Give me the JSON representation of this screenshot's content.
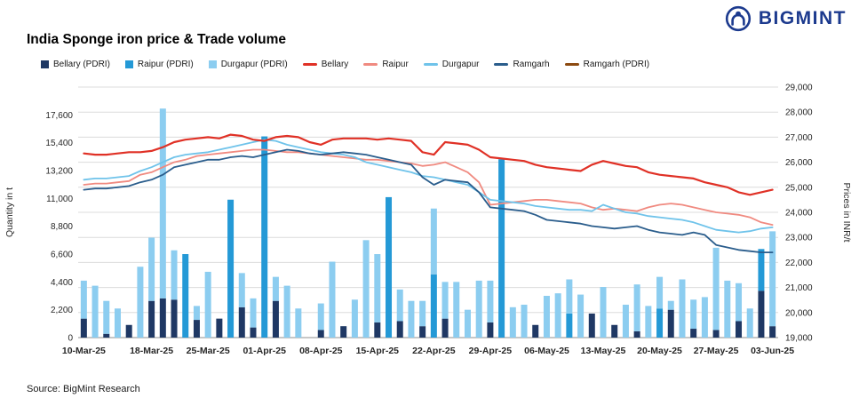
{
  "header": {
    "brand": "BIGMINT"
  },
  "title": "India Sponge iron price & Trade volume",
  "source": "Source: BigMint Research",
  "colors": {
    "brand_navy": "#1c3a8e"
  },
  "chart_data": {
    "type": "bar+line",
    "title": "India Sponge iron price & Trade volume",
    "stacked_bars": true,
    "grid": true,
    "legend_position": "top",
    "x": [
      "10-Mar-25",
      "11-Mar-25",
      "12-Mar-25",
      "13-Mar-25",
      "14-Mar-25",
      "17-Mar-25",
      "18-Mar-25",
      "19-Mar-25",
      "20-Mar-25",
      "21-Mar-25",
      "24-Mar-25",
      "25-Mar-25",
      "26-Mar-25",
      "27-Mar-25",
      "28-Mar-25",
      "31-Mar-25",
      "01-Apr-25",
      "02-Apr-25",
      "03-Apr-25",
      "04-Apr-25",
      "07-Apr-25",
      "08-Apr-25",
      "09-Apr-25",
      "10-Apr-25",
      "11-Apr-25",
      "14-Apr-25",
      "15-Apr-25",
      "16-Apr-25",
      "17-Apr-25",
      "18-Apr-25",
      "21-Apr-25",
      "22-Apr-25",
      "23-Apr-25",
      "24-Apr-25",
      "25-Apr-25",
      "28-Apr-25",
      "29-Apr-25",
      "30-Apr-25",
      "01-May-25",
      "02-May-25",
      "05-May-25",
      "06-May-25",
      "07-May-25",
      "08-May-25",
      "09-May-25",
      "12-May-25",
      "13-May-25",
      "14-May-25",
      "15-May-25",
      "16-May-25",
      "19-May-25",
      "20-May-25",
      "21-May-25",
      "22-May-25",
      "23-May-25",
      "26-May-25",
      "27-May-25",
      "28-May-25",
      "29-May-25",
      "30-May-25",
      "02-Jun-25",
      "03-Jun-25"
    ],
    "x_tick_indices": [
      0,
      6,
      11,
      16,
      21,
      26,
      31,
      36,
      41,
      46,
      51,
      56,
      61
    ],
    "left_axis": {
      "label": "Quantity in t",
      "max": 19800,
      "ticks": [
        0,
        2200,
        4400,
        6600,
        8800,
        11000,
        13200,
        15400,
        17600
      ]
    },
    "right_axis": {
      "label": "Prices in INR/t",
      "min": 19000,
      "max": 29000,
      "step": 1000
    },
    "bar_series": [
      {
        "name": "Bellary (PDRI)",
        "color": "#1f3864",
        "values": [
          1500,
          0,
          300,
          0,
          1000,
          0,
          2900,
          3100,
          3000,
          0,
          1400,
          0,
          1500,
          0,
          2400,
          800,
          0,
          2900,
          0,
          0,
          0,
          600,
          0,
          900,
          0,
          0,
          1200,
          0,
          1300,
          0,
          900,
          0,
          1500,
          0,
          0,
          0,
          1200,
          0,
          0,
          0,
          1000,
          0,
          0,
          0,
          0,
          1900,
          0,
          1000,
          0,
          500,
          0,
          0,
          2200,
          0,
          700,
          0,
          600,
          0,
          1300,
          0,
          3700,
          900
        ]
      },
      {
        "name": "Raipur (PDRI)",
        "color": "#2499d6",
        "values": [
          0,
          0,
          0,
          0,
          0,
          0,
          0,
          0,
          0,
          6600,
          0,
          0,
          0,
          10900,
          0,
          0,
          15900,
          0,
          0,
          0,
          0,
          0,
          0,
          0,
          0,
          0,
          0,
          11100,
          0,
          0,
          0,
          5000,
          0,
          0,
          0,
          0,
          0,
          14100,
          0,
          0,
          0,
          0,
          0,
          1900,
          0,
          0,
          0,
          0,
          0,
          0,
          0,
          2300,
          0,
          0,
          0,
          0,
          0,
          0,
          0,
          0,
          3300,
          0
        ]
      },
      {
        "name": "Durgapur (PDRI)",
        "color": "#8ccdf0",
        "values": [
          3000,
          4100,
          2600,
          2300,
          0,
          5600,
          5000,
          15000,
          3900,
          0,
          1100,
          5200,
          0,
          0,
          2700,
          2300,
          0,
          1900,
          4100,
          2300,
          0,
          2100,
          6000,
          0,
          3000,
          7700,
          5400,
          0,
          2500,
          2900,
          2000,
          5200,
          2900,
          4400,
          2200,
          4500,
          3300,
          0,
          2400,
          2600,
          0,
          3300,
          3500,
          2700,
          3400,
          0,
          4000,
          0,
          2600,
          3700,
          2500,
          2500,
          700,
          4600,
          2300,
          3200,
          6500,
          4500,
          3000,
          2300,
          0,
          7500
        ]
      }
    ],
    "line_series": [
      {
        "name": "Bellary",
        "color": "#e03126",
        "width": 2.2,
        "values": [
          26350,
          26300,
          26300,
          26350,
          26400,
          26400,
          26450,
          26600,
          26800,
          26900,
          26950,
          27000,
          26950,
          27100,
          27050,
          26900,
          26850,
          27000,
          27050,
          27000,
          26800,
          26700,
          26900,
          26950,
          26950,
          26950,
          26900,
          26950,
          26900,
          26850,
          26400,
          26300,
          26800,
          26750,
          26700,
          26500,
          26200,
          26150,
          26100,
          26050,
          25900,
          25800,
          25750,
          25700,
          25650,
          25900,
          26050,
          25950,
          25850,
          25800,
          25600,
          25500,
          25450,
          25400,
          25350,
          25200,
          25100,
          25000,
          24800,
          24700,
          24800,
          24900
        ]
      },
      {
        "name": "Raipur",
        "color": "#f08a80",
        "width": 1.8,
        "values": [
          25100,
          25150,
          25150,
          25200,
          25250,
          25500,
          25600,
          25800,
          26000,
          26100,
          26250,
          26300,
          26350,
          26400,
          26450,
          26500,
          26500,
          26450,
          26400,
          26400,
          26350,
          26300,
          26250,
          26200,
          26150,
          26100,
          26100,
          26050,
          26000,
          25950,
          25850,
          25900,
          26000,
          25800,
          25600,
          25200,
          24300,
          24350,
          24400,
          24450,
          24500,
          24500,
          24450,
          24400,
          24350,
          24200,
          24100,
          24150,
          24100,
          24050,
          24200,
          24300,
          24350,
          24300,
          24200,
          24100,
          24000,
          23950,
          23900,
          23800,
          23600,
          23500
        ]
      },
      {
        "name": "Durgapur",
        "color": "#6fc3ea",
        "width": 1.8,
        "values": [
          25300,
          25350,
          25350,
          25400,
          25450,
          25650,
          25800,
          26000,
          26200,
          26300,
          26350,
          26400,
          26500,
          26600,
          26700,
          26800,
          26900,
          26850,
          26700,
          26600,
          26500,
          26400,
          26350,
          26300,
          26200,
          26000,
          25900,
          25800,
          25700,
          25600,
          25450,
          25400,
          25300,
          25200,
          25100,
          24800,
          24500,
          24450,
          24400,
          24350,
          24250,
          24200,
          24150,
          24100,
          24100,
          24050,
          24300,
          24150,
          24000,
          23950,
          23850,
          23800,
          23750,
          23700,
          23600,
          23450,
          23300,
          23250,
          23200,
          23250,
          23350,
          23400
        ]
      },
      {
        "name": "Ramgarh",
        "color": "#2a5d8c",
        "width": 1.8,
        "values": [
          24900,
          24950,
          24950,
          25000,
          25050,
          25200,
          25300,
          25500,
          25800,
          25900,
          26000,
          26100,
          26100,
          26200,
          26250,
          26200,
          26300,
          26400,
          26500,
          26450,
          26350,
          26300,
          26350,
          26400,
          26350,
          26300,
          26200,
          26100,
          26000,
          25900,
          25400,
          25100,
          25300,
          25250,
          25200,
          24800,
          24200,
          24150,
          24100,
          24050,
          23900,
          23700,
          23650,
          23600,
          23550,
          23450,
          23400,
          23350,
          23400,
          23450,
          23300,
          23200,
          23150,
          23100,
          23200,
          23100,
          22700,
          22600,
          22500,
          22450,
          22400,
          22400
        ]
      },
      {
        "name": "Ramgarh (PDRI)",
        "color": "#8c4a10",
        "width": 1.8,
        "values": []
      }
    ]
  }
}
